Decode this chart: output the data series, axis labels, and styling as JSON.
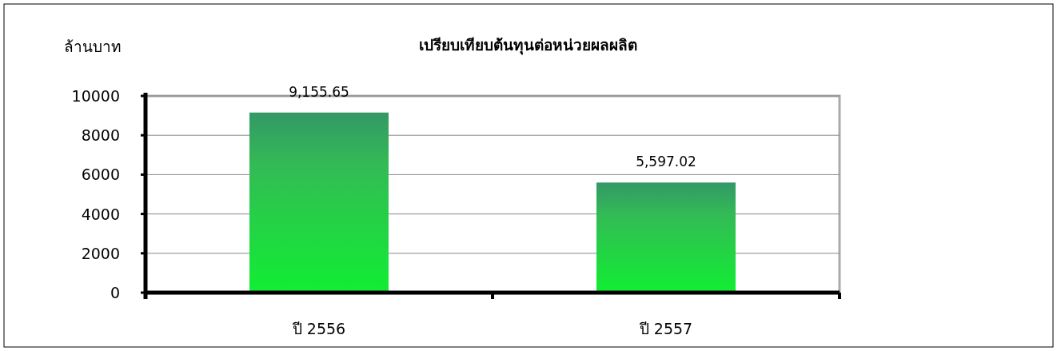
{
  "chart_data": {
    "type": "bar",
    "title": "เปรียบเทียบต้นทุนต่อหน่วยผลผลิต",
    "ylabel": "ล้านบาท",
    "categories": [
      "ปี 2556",
      "ปี 2557"
    ],
    "values": [
      9155.65,
      5597.02
    ],
    "value_labels": [
      "9,155.65",
      "5,597.02"
    ],
    "color": "#11ee33",
    "ylim": [
      0,
      10000
    ],
    "yticks": [
      0,
      2000,
      4000,
      6000,
      8000,
      10000
    ],
    "grid": "y"
  }
}
